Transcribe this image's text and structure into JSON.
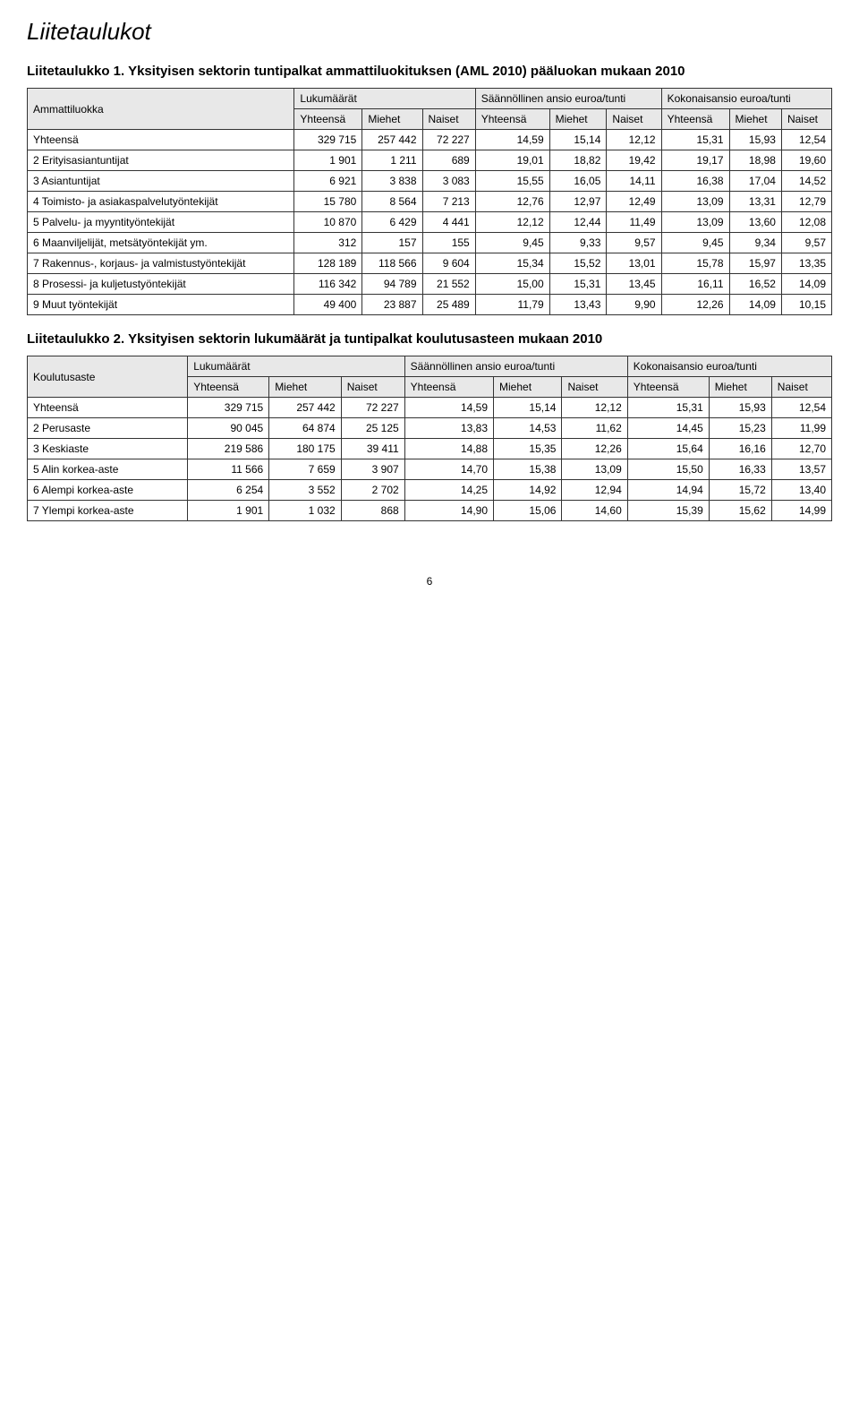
{
  "page_title": "Liitetaulukot",
  "page_number": "6",
  "table1": {
    "title": "Liitetaulukko 1. Yksityisen sektorin tuntipalkat ammattiluokituksen (AML 2010) pääluokan mukaan 2010",
    "headers": {
      "col0": "Ammattiluokka",
      "group1": "Lukumäärät",
      "group2": "Säännöllinen ansio euroa/tunti",
      "group3": "Kokonaisansio euroa/tunti",
      "sub_y": "Yhteensä",
      "sub_m": "Miehet",
      "sub_n": "Naiset"
    },
    "rows": [
      {
        "label": "Yhteensä",
        "c": [
          "329 715",
          "257 442",
          "72 227",
          "14,59",
          "15,14",
          "12,12",
          "15,31",
          "15,93",
          "12,54"
        ]
      },
      {
        "label": "2 Erityisasiantuntijat",
        "c": [
          "1 901",
          "1 211",
          "689",
          "19,01",
          "18,82",
          "19,42",
          "19,17",
          "18,98",
          "19,60"
        ]
      },
      {
        "label": "3 Asiantuntijat",
        "c": [
          "6 921",
          "3 838",
          "3 083",
          "15,55",
          "16,05",
          "14,11",
          "16,38",
          "17,04",
          "14,52"
        ]
      },
      {
        "label": "4 Toimisto- ja asiakaspalvelutyöntekijät",
        "c": [
          "15 780",
          "8 564",
          "7 213",
          "12,76",
          "12,97",
          "12,49",
          "13,09",
          "13,31",
          "12,79"
        ]
      },
      {
        "label": "5 Palvelu- ja myyntityöntekijät",
        "c": [
          "10 870",
          "6 429",
          "4 441",
          "12,12",
          "12,44",
          "11,49",
          "13,09",
          "13,60",
          "12,08"
        ]
      },
      {
        "label": "6 Maanviljelijät, metsätyöntekijät ym.",
        "c": [
          "312",
          "157",
          "155",
          "9,45",
          "9,33",
          "9,57",
          "9,45",
          "9,34",
          "9,57"
        ]
      },
      {
        "label": "7 Rakennus-, korjaus- ja valmistustyöntekijät",
        "c": [
          "128 189",
          "118 566",
          "9 604",
          "15,34",
          "15,52",
          "13,01",
          "15,78",
          "15,97",
          "13,35"
        ]
      },
      {
        "label": "8 Prosessi- ja kuljetustyöntekijät",
        "c": [
          "116 342",
          "94 789",
          "21 552",
          "15,00",
          "15,31",
          "13,45",
          "16,11",
          "16,52",
          "14,09"
        ]
      },
      {
        "label": "9 Muut työntekijät",
        "c": [
          "49 400",
          "23 887",
          "25 489",
          "11,79",
          "13,43",
          "9,90",
          "12,26",
          "14,09",
          "10,15"
        ]
      }
    ]
  },
  "table2": {
    "title": "Liitetaulukko 2. Yksityisen sektorin lukumäärät ja tuntipalkat koulutusasteen mukaan 2010",
    "headers": {
      "col0": "Koulutusaste",
      "group1": "Lukumäärät",
      "group2": "Säännöllinen ansio euroa/tunti",
      "group3": "Kokonaisansio euroa/tunti",
      "sub_y": "Yhteensä",
      "sub_m": "Miehet",
      "sub_n": "Naiset"
    },
    "rows": [
      {
        "label": "Yhteensä",
        "c": [
          "329 715",
          "257 442",
          "72 227",
          "14,59",
          "15,14",
          "12,12",
          "15,31",
          "15,93",
          "12,54"
        ]
      },
      {
        "label": "2 Perusaste",
        "c": [
          "90 045",
          "64 874",
          "25 125",
          "13,83",
          "14,53",
          "11,62",
          "14,45",
          "15,23",
          "11,99"
        ]
      },
      {
        "label": "3 Keskiaste",
        "c": [
          "219 586",
          "180 175",
          "39 411",
          "14,88",
          "15,35",
          "12,26",
          "15,64",
          "16,16",
          "12,70"
        ]
      },
      {
        "label": "5 Alin korkea-aste",
        "c": [
          "11 566",
          "7 659",
          "3 907",
          "14,70",
          "15,38",
          "13,09",
          "15,50",
          "16,33",
          "13,57"
        ]
      },
      {
        "label": "6 Alempi korkea-aste",
        "c": [
          "6 254",
          "3 552",
          "2 702",
          "14,25",
          "14,92",
          "12,94",
          "14,94",
          "15,72",
          "13,40"
        ]
      },
      {
        "label": "7 Ylempi korkea-aste",
        "c": [
          "1 901",
          "1 032",
          "868",
          "14,90",
          "15,06",
          "14,60",
          "15,39",
          "15,62",
          "14,99"
        ]
      }
    ]
  }
}
